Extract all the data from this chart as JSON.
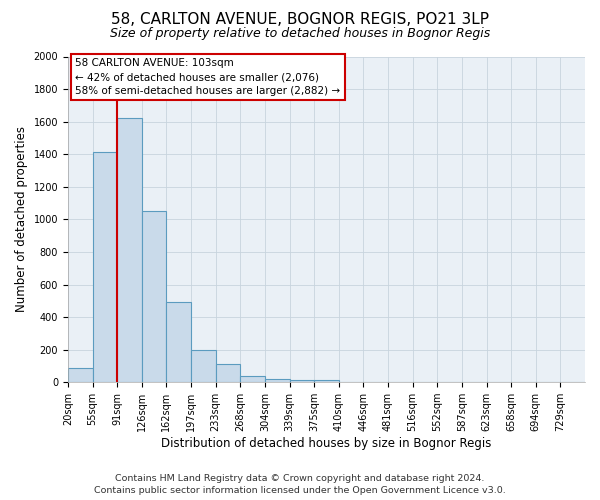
{
  "title": "58, CARLTON AVENUE, BOGNOR REGIS, PO21 3LP",
  "subtitle": "Size of property relative to detached houses in Bognor Regis",
  "xlabel": "Distribution of detached houses by size in Bognor Regis",
  "ylabel": "Number of detached properties",
  "bin_labels": [
    "20sqm",
    "55sqm",
    "91sqm",
    "126sqm",
    "162sqm",
    "197sqm",
    "233sqm",
    "268sqm",
    "304sqm",
    "339sqm",
    "375sqm",
    "410sqm",
    "446sqm",
    "481sqm",
    "516sqm",
    "552sqm",
    "587sqm",
    "623sqm",
    "658sqm",
    "694sqm",
    "729sqm"
  ],
  "bar_heights": [
    85,
    1415,
    1620,
    1050,
    490,
    200,
    110,
    40,
    20,
    15,
    15,
    0,
    0,
    0,
    0,
    0,
    0,
    0,
    0,
    0,
    0
  ],
  "bar_color": "#c9daea",
  "bar_edge_color": "#5b9bbf",
  "vline_x_idx": 2,
  "vline_color": "#cc0000",
  "annotation_title": "58 CARLTON AVENUE: 103sqm",
  "annotation_line1": "← 42% of detached houses are smaller (2,076)",
  "annotation_line2": "58% of semi-detached houses are larger (2,882) →",
  "annotation_box_facecolor": "#ffffff",
  "annotation_box_edgecolor": "#cc0000",
  "ylim": [
    0,
    2000
  ],
  "yticks": [
    0,
    200,
    400,
    600,
    800,
    1000,
    1200,
    1400,
    1600,
    1800,
    2000
  ],
  "footer1": "Contains HM Land Registry data © Crown copyright and database right 2024.",
  "footer2": "Contains public sector information licensed under the Open Government Licence v3.0.",
  "fig_bg_color": "#ffffff",
  "plot_bg_color": "#eaf0f6",
  "grid_color": "#c8d4de",
  "title_fontsize": 11,
  "subtitle_fontsize": 9,
  "axis_label_fontsize": 8.5,
  "tick_fontsize": 7,
  "footer_fontsize": 6.8,
  "annotation_fontsize": 7.5
}
